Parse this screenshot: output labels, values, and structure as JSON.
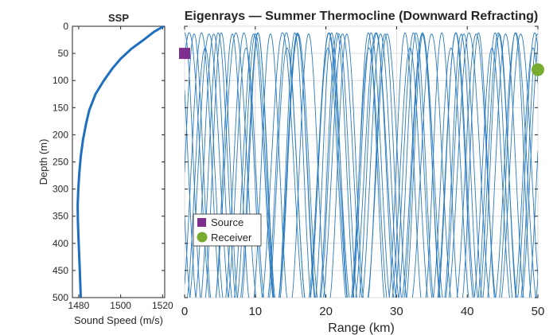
{
  "chart_data": [
    {
      "type": "line",
      "title": "SSP",
      "xlabel": "Sound Speed (m/s)",
      "ylabel": "Depth (m)",
      "xlim": [
        1477,
        1521
      ],
      "ylim": [
        0,
        500
      ],
      "y_reversed": true,
      "x_ticks": [
        1480,
        1500,
        1520
      ],
      "y_ticks": [
        0,
        50,
        100,
        150,
        200,
        250,
        300,
        350,
        400,
        450,
        500
      ],
      "series": [
        {
          "color": "#1f6fbf",
          "x": [
            1520.5,
            1516,
            1511,
            1505,
            1500,
            1496,
            1492,
            1488,
            1485,
            1483.5,
            1482,
            1481,
            1480.3,
            1479.8,
            1479.5,
            1479.6,
            1480,
            1480.4,
            1480.7,
            1481
          ],
          "y": [
            0,
            10,
            25,
            42,
            60,
            78,
            100,
            125,
            155,
            180,
            210,
            240,
            270,
            300,
            330,
            360,
            400,
            440,
            470,
            500
          ]
        }
      ],
      "grid": false
    },
    {
      "type": "line",
      "title": "Eigenrays — Summer Thermocline (Downward Refracting)",
      "xlabel": "Range (km)",
      "xlim": [
        0,
        50
      ],
      "ylim": [
        0,
        500
      ],
      "y_reversed": true,
      "x_ticks": [
        0,
        10,
        20,
        30,
        40,
        50
      ],
      "grid": true,
      "legend": {
        "position": "lower-left",
        "entries": [
          {
            "label": "Source",
            "color": "#7e2f8e",
            "marker": "square"
          },
          {
            "label": "Receiver",
            "color": "#77ac30",
            "marker": "circle"
          }
        ]
      },
      "source": {
        "range_km": 0,
        "depth_m": 50
      },
      "receiver": {
        "range_km": 50,
        "depth_m": 80
      },
      "ray_color": "#2a7bbf",
      "rays": [
        {
          "period_km": 5.2,
          "phase": 0.0,
          "top_m": 12,
          "bottom_m": 500
        },
        {
          "period_km": 5.6,
          "phase": 0.15,
          "top_m": 12,
          "bottom_m": 500
        },
        {
          "period_km": 5.9,
          "phase": 0.3,
          "top_m": 14,
          "bottom_m": 500
        },
        {
          "period_km": 6.3,
          "phase": 0.45,
          "top_m": 14,
          "bottom_m": 500
        },
        {
          "period_km": 6.0,
          "phase": 0.6,
          "top_m": 12,
          "bottom_m": 500
        },
        {
          "period_km": 5.4,
          "phase": 0.75,
          "top_m": 14,
          "bottom_m": 500
        },
        {
          "period_km": 6.6,
          "phase": 0.9,
          "top_m": 12,
          "bottom_m": 500
        },
        {
          "period_km": 5.8,
          "phase": 0.5,
          "top_m": 40,
          "bottom_m": 500
        }
      ]
    }
  ]
}
